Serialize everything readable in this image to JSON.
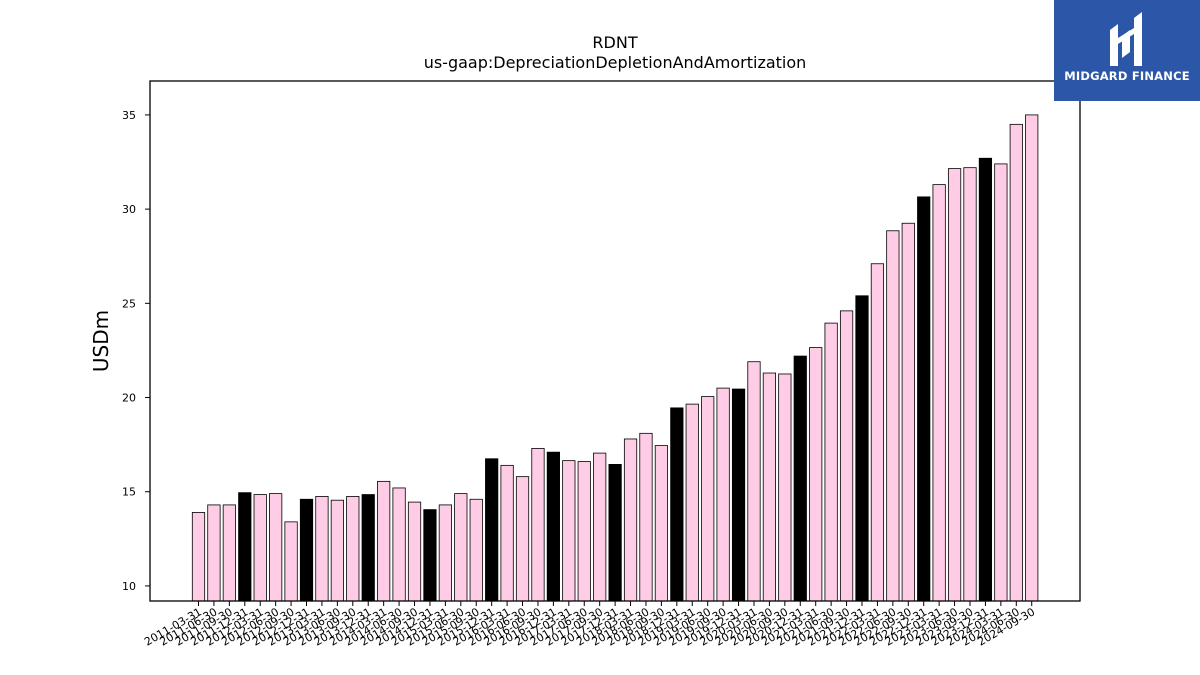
{
  "chart_data": {
    "type": "bar",
    "title": "RDNT",
    "subtitle": "us-gaap:DepreciationDepletionAndAmortization",
    "xlabel": "",
    "ylabel": "USDm",
    "ylim": [
      9.2,
      36.8
    ],
    "yticks": [
      10,
      15,
      20,
      25,
      30,
      35
    ],
    "grid": false,
    "colors": {
      "quarter": "#ffcce5",
      "year_end": "#000000",
      "edge": "#000000"
    },
    "categories": [
      "2011-03-31",
      "2011-06-30",
      "2011-09-30",
      "2011-12-31",
      "2012-03-31",
      "2012-06-30",
      "2012-09-30",
      "2012-12-31",
      "2013-03-31",
      "2013-06-30",
      "2013-09-30",
      "2013-12-31",
      "2014-03-31",
      "2014-06-30",
      "2014-09-30",
      "2014-12-31",
      "2015-03-31",
      "2015-06-30",
      "2015-09-30",
      "2015-12-31",
      "2016-03-31",
      "2016-06-30",
      "2016-09-30",
      "2016-12-31",
      "2017-03-31",
      "2017-06-30",
      "2017-09-30",
      "2017-12-31",
      "2018-03-31",
      "2018-06-30",
      "2018-09-30",
      "2018-12-31",
      "2019-03-31",
      "2019-06-30",
      "2019-09-30",
      "2019-12-31",
      "2020-03-31",
      "2020-06-30",
      "2020-09-30",
      "2020-12-31",
      "2021-03-31",
      "2021-06-30",
      "2021-09-30",
      "2021-12-31",
      "2022-03-31",
      "2022-06-30",
      "2022-09-30",
      "2022-12-31",
      "2023-03-31",
      "2023-06-30",
      "2023-09-30",
      "2023-12-31",
      "2024-03-31",
      "2024-06-30",
      "2024-09-30"
    ],
    "values": [
      13.9,
      14.3,
      14.3,
      14.95,
      14.85,
      14.9,
      13.4,
      14.6,
      14.75,
      14.55,
      14.75,
      14.85,
      15.55,
      15.2,
      14.45,
      14.05,
      14.3,
      14.9,
      14.6,
      16.75,
      16.4,
      15.8,
      17.3,
      17.1,
      16.65,
      16.6,
      17.05,
      16.45,
      17.8,
      18.1,
      17.45,
      19.45,
      19.65,
      20.05,
      20.5,
      20.45,
      21.9,
      21.3,
      21.25,
      22.2,
      22.65,
      23.95,
      24.6,
      25.4,
      27.1,
      28.85,
      29.25,
      30.65,
      31.3,
      32.15,
      32.2,
      32.7,
      32.4,
      34.5,
      35.0
    ]
  },
  "branding": {
    "logo_text": "MIDGARD FINANCE",
    "logo_icon": "midgard-logo-icon"
  }
}
